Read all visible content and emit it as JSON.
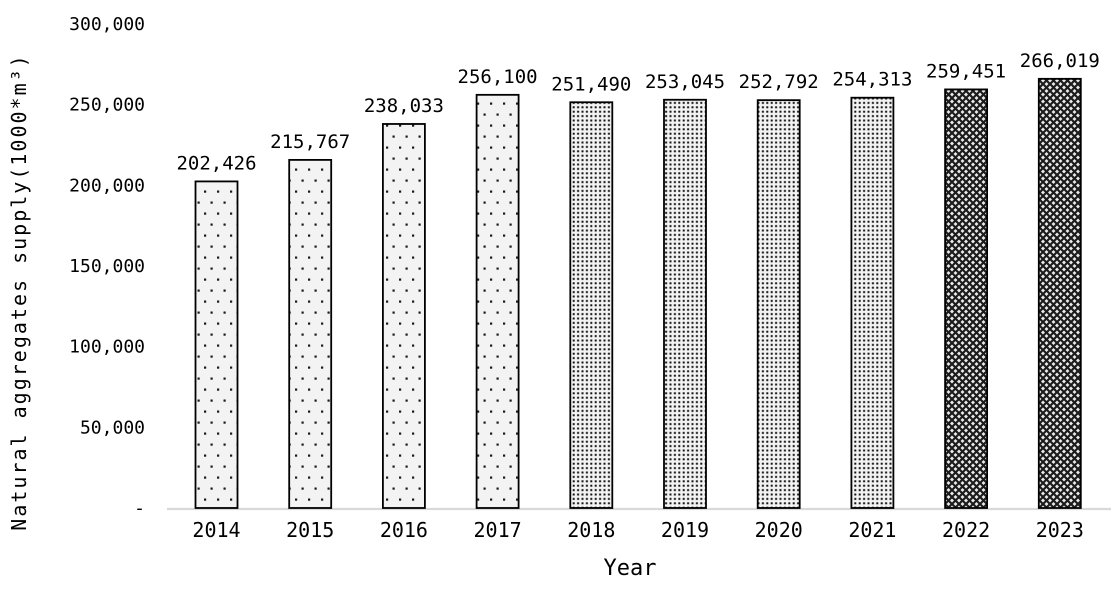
{
  "chart_data": {
    "type": "bar",
    "title": "",
    "xlabel": "Year",
    "ylabel": "Natural aggregates supply(1000*m³)",
    "categories": [
      "2014",
      "2015",
      "2016",
      "2017",
      "2018",
      "2019",
      "2020",
      "2021",
      "2022",
      "2023"
    ],
    "values": [
      202426,
      215767,
      238033,
      256100,
      251490,
      253045,
      252792,
      254313,
      259451,
      266019
    ],
    "value_labels": [
      "202,426",
      "215,767",
      "238,033",
      "256,100",
      "251,490",
      "253,045",
      "252,792",
      "254,313",
      "259,451",
      "266,019"
    ],
    "bar_patterns": [
      "sparse-dots",
      "sparse-dots",
      "sparse-dots",
      "sparse-dots",
      "dense-dots",
      "dense-dots",
      "dense-dots",
      "dense-dots",
      "diagonal-crosshatch",
      "diagonal-crosshatch"
    ],
    "y_axis": {
      "ticks": [
        {
          "label": "300,000",
          "value": 300000
        },
        {
          "label": "250,000",
          "value": 250000
        },
        {
          "label": "200,000",
          "value": 200000
        },
        {
          "label": "150,000",
          "value": 150000
        },
        {
          "label": "100,000",
          "value": 100000
        },
        {
          "label": "50,000",
          "value": 50000
        },
        {
          "label": "-",
          "value": 0
        }
      ],
      "range": [
        0,
        300000
      ]
    },
    "grid": "off",
    "legend": "none",
    "colors": {
      "background": "#ffffff",
      "bar_fill_light": "#f3f3f3",
      "crosshatch_bg": "#ececec",
      "pattern_ink": "#1a1a1a",
      "bar_border": "#000000",
      "axis_line": "#d9d9d9",
      "text": "#000000"
    }
  }
}
